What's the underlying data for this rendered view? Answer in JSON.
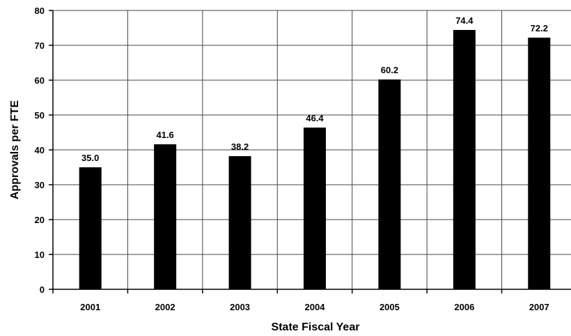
{
  "chart_data": {
    "type": "bar",
    "title": "",
    "xlabel": "State Fiscal Year",
    "ylabel": "Approvals per FTE",
    "categories": [
      "2001",
      "2002",
      "2003",
      "2004",
      "2005",
      "2006",
      "2007"
    ],
    "values": [
      35.0,
      41.6,
      38.2,
      46.4,
      60.2,
      74.4,
      72.2
    ],
    "value_labels": [
      "35.0",
      "41.6",
      "38.2",
      "46.4",
      "60.2",
      "74.4",
      "72.2"
    ],
    "ylim": [
      0,
      80
    ],
    "yticks": [
      "0",
      "10",
      "20",
      "30",
      "40",
      "50",
      "60",
      "70",
      "80"
    ],
    "grid": true,
    "legend": "none",
    "bar_color": "#000000"
  }
}
